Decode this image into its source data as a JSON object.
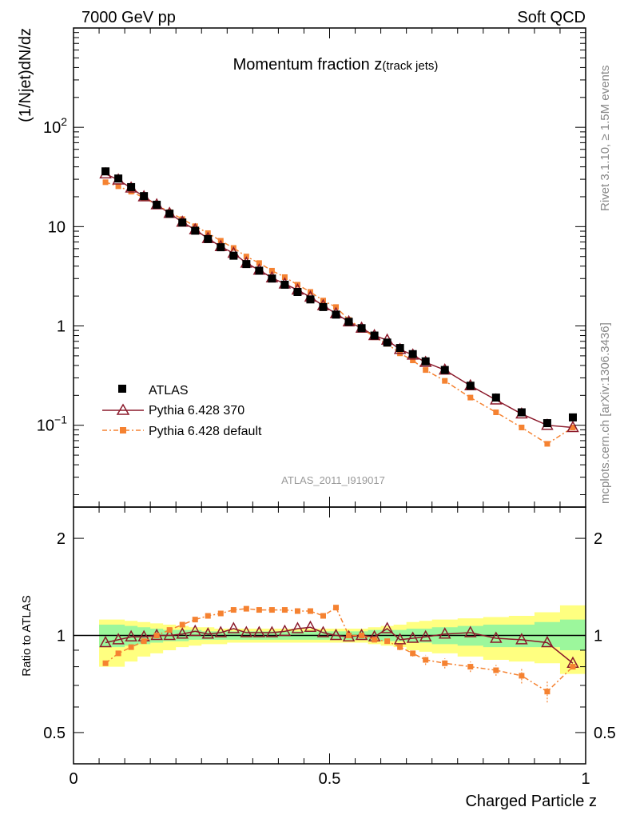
{
  "header": {
    "left": "7000 GeV pp",
    "right": "Soft QCD"
  },
  "side_labels": {
    "rivet": "Rivet 3.1.10, ≥ 1.5M events",
    "source": "mcplots.cern.ch [arXiv:1306.3436]"
  },
  "colors": {
    "data": "#000000",
    "pythia370": "#8b1a2b",
    "pythia_default": "#f58231",
    "band_inner": "#9cf79c",
    "band_outer": "#ffff80"
  },
  "chart_data": [
    {
      "type": "line",
      "title_main": "Momentum fraction ",
      "title_z": "z",
      "title_sub": "(track jets)",
      "ylabel": "(1/Njet)dN/dz",
      "yscale": "log",
      "ylim": [
        0.015,
        1000
      ],
      "xlim": [
        0,
        1
      ],
      "yticks": [
        {
          "value": 100,
          "base": "10",
          "exp": "2"
        },
        {
          "value": 10,
          "base": "10",
          "exp": ""
        },
        {
          "value": 1,
          "base": "1",
          "exp": ""
        },
        {
          "value": 0.1,
          "base": "10",
          "exp": "−1"
        }
      ],
      "analysis_label": "ATLAS_2011_I919017",
      "x": [
        0.0625,
        0.0875,
        0.1125,
        0.1375,
        0.1625,
        0.1875,
        0.2125,
        0.2375,
        0.2625,
        0.2875,
        0.3125,
        0.3375,
        0.3625,
        0.3875,
        0.4125,
        0.4375,
        0.4625,
        0.4875,
        0.5125,
        0.5375,
        0.5625,
        0.5875,
        0.6125,
        0.6375,
        0.6625,
        0.6875,
        0.725,
        0.775,
        0.825,
        0.875,
        0.925,
        0.975
      ],
      "series": [
        {
          "name": "ATLAS",
          "key": "data",
          "marker": "square",
          "values": [
            36.0,
            30.5,
            25.0,
            20.3,
            16.6,
            13.5,
            11.0,
            9.1,
            7.5,
            6.2,
            5.1,
            4.2,
            3.6,
            3.0,
            2.6,
            2.2,
            1.85,
            1.55,
            1.3,
            1.1,
            0.95,
            0.8,
            0.68,
            0.6,
            0.52,
            0.44,
            0.36,
            0.25,
            0.19,
            0.135,
            0.105,
            0.12
          ]
        },
        {
          "name": "Pythia 6.428 370",
          "key": "pythia370",
          "marker": "triangle",
          "values": [
            34.0,
            29.5,
            24.5,
            20.0,
            16.6,
            13.6,
            11.1,
            9.3,
            7.6,
            6.3,
            5.4,
            4.3,
            3.65,
            3.05,
            2.65,
            2.3,
            1.95,
            1.6,
            1.33,
            1.1,
            0.95,
            0.8,
            0.72,
            0.58,
            0.51,
            0.43,
            0.36,
            0.25,
            0.18,
            0.13,
            0.1,
            0.095
          ]
        },
        {
          "name": "Pythia 6.428 default",
          "key": "pythia_default",
          "marker": "smallsquare",
          "values": [
            28.0,
            25.5,
            22.5,
            19.5,
            16.6,
            14.0,
            11.9,
            10.1,
            8.6,
            7.2,
            6.1,
            5.0,
            4.3,
            3.6,
            3.1,
            2.6,
            2.2,
            1.8,
            1.55,
            1.15,
            0.95,
            0.77,
            0.66,
            0.53,
            0.45,
            0.36,
            0.28,
            0.19,
            0.135,
            0.095,
            0.065,
            0.095
          ]
        }
      ]
    },
    {
      "type": "line",
      "ylabel": "Ratio to ATLAS",
      "yscale": "log",
      "ylim": [
        0.4,
        2.5
      ],
      "xlim": [
        0,
        1
      ],
      "xlabel": "Charged Particle z",
      "yticks": [
        {
          "value": 2,
          "label": "2"
        },
        {
          "value": 1,
          "label": "1"
        },
        {
          "value": 0.5,
          "label": "0.5"
        }
      ],
      "xticks": [
        {
          "value": 0,
          "label": "0"
        },
        {
          "value": 0.5,
          "label": "0.5"
        },
        {
          "value": 1,
          "label": "1"
        }
      ],
      "x": [
        0.0625,
        0.0875,
        0.1125,
        0.1375,
        0.1625,
        0.1875,
        0.2125,
        0.2375,
        0.2625,
        0.2875,
        0.3125,
        0.3375,
        0.3625,
        0.3875,
        0.4125,
        0.4375,
        0.4625,
        0.4875,
        0.5125,
        0.5375,
        0.5625,
        0.5875,
        0.6125,
        0.6375,
        0.6625,
        0.6875,
        0.725,
        0.775,
        0.825,
        0.875,
        0.925,
        0.975
      ],
      "bin_edges": [
        0.05,
        0.075,
        0.1,
        0.125,
        0.15,
        0.175,
        0.2,
        0.225,
        0.25,
        0.275,
        0.3,
        0.325,
        0.35,
        0.375,
        0.4,
        0.425,
        0.45,
        0.475,
        0.5,
        0.525,
        0.55,
        0.575,
        0.6,
        0.625,
        0.65,
        0.675,
        0.7,
        0.75,
        0.8,
        0.85,
        0.9,
        0.95,
        1.0
      ],
      "band_inner": {
        "low": [
          0.92,
          0.92,
          0.93,
          0.94,
          0.95,
          0.96,
          0.96,
          0.97,
          0.97,
          0.97,
          0.97,
          0.97,
          0.97,
          0.97,
          0.97,
          0.97,
          0.97,
          0.97,
          0.97,
          0.97,
          0.97,
          0.96,
          0.96,
          0.96,
          0.95,
          0.95,
          0.94,
          0.93,
          0.92,
          0.92,
          0.92,
          0.9
        ],
        "high": [
          1.08,
          1.08,
          1.07,
          1.06,
          1.05,
          1.04,
          1.04,
          1.04,
          1.03,
          1.03,
          1.03,
          1.03,
          1.03,
          1.03,
          1.03,
          1.03,
          1.03,
          1.03,
          1.03,
          1.03,
          1.03,
          1.04,
          1.04,
          1.04,
          1.05,
          1.05,
          1.06,
          1.07,
          1.08,
          1.08,
          1.1,
          1.12
        ]
      },
      "band_outer": {
        "low": [
          0.8,
          0.8,
          0.83,
          0.86,
          0.88,
          0.9,
          0.92,
          0.93,
          0.94,
          0.94,
          0.95,
          0.95,
          0.95,
          0.95,
          0.95,
          0.95,
          0.95,
          0.95,
          0.95,
          0.95,
          0.95,
          0.94,
          0.93,
          0.92,
          0.9,
          0.89,
          0.88,
          0.86,
          0.84,
          0.83,
          0.82,
          0.76
        ],
        "high": [
          1.12,
          1.12,
          1.11,
          1.1,
          1.09,
          1.08,
          1.07,
          1.06,
          1.06,
          1.05,
          1.05,
          1.05,
          1.05,
          1.05,
          1.05,
          1.05,
          1.05,
          1.05,
          1.05,
          1.05,
          1.05,
          1.06,
          1.07,
          1.08,
          1.1,
          1.11,
          1.12,
          1.13,
          1.14,
          1.15,
          1.18,
          1.24
        ]
      },
      "reference_line": 1.0,
      "series": [
        {
          "name": "Pythia 6.428 370",
          "key": "pythia370",
          "marker": "triangle",
          "values": [
            0.95,
            0.97,
            0.99,
            0.99,
            1.0,
            1.0,
            1.01,
            1.03,
            1.01,
            1.02,
            1.05,
            1.02,
            1.02,
            1.02,
            1.03,
            1.05,
            1.06,
            1.02,
            1.0,
            0.99,
            1.0,
            0.99,
            1.05,
            0.97,
            0.98,
            0.99,
            1.01,
            1.02,
            0.98,
            0.97,
            0.95,
            0.82
          ]
        },
        {
          "name": "Pythia 6.428 default",
          "key": "pythia_default",
          "marker": "smallsquare",
          "values": [
            0.82,
            0.88,
            0.92,
            0.96,
            1.0,
            1.04,
            1.08,
            1.12,
            1.15,
            1.17,
            1.2,
            1.21,
            1.2,
            1.2,
            1.2,
            1.19,
            1.19,
            1.15,
            1.22,
            1.0,
            1.0,
            0.97,
            0.96,
            0.92,
            0.88,
            0.84,
            0.82,
            0.8,
            0.78,
            0.75,
            0.67,
            0.8
          ],
          "err_low": [
            0.0,
            0.0,
            0.0,
            0.0,
            0.0,
            0.0,
            0.0,
            0.0,
            0.0,
            0.0,
            0.0,
            0.0,
            0.0,
            0.0,
            0.0,
            0.0,
            0.0,
            0.0,
            0.02,
            0.0,
            0.0,
            0.0,
            0.0,
            0.02,
            0.02,
            0.03,
            0.03,
            0.03,
            0.03,
            0.04,
            0.05,
            0.0
          ],
          "err_high": [
            0.0,
            0.0,
            0.0,
            0.0,
            0.0,
            0.0,
            0.0,
            0.0,
            0.0,
            0.0,
            0.0,
            0.0,
            0.0,
            0.0,
            0.0,
            0.0,
            0.0,
            0.0,
            0.02,
            0.0,
            0.0,
            0.0,
            0.0,
            0.02,
            0.02,
            0.03,
            0.03,
            0.03,
            0.03,
            0.04,
            0.05,
            0.0
          ]
        }
      ]
    }
  ]
}
